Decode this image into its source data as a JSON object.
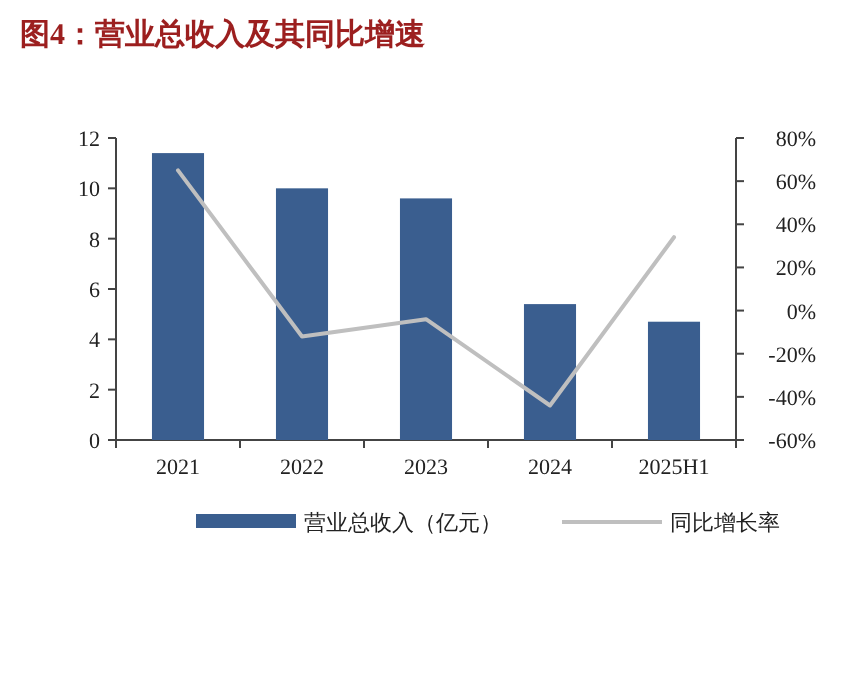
{
  "chart_data": {
    "type": "bar",
    "title": "图4：营业总收入及其同比增速",
    "categories": [
      "2021",
      "2022",
      "2023",
      "2024",
      "2025H1"
    ],
    "series": [
      {
        "name": "营业总收入（亿元）",
        "color": "#3a5e8f",
        "values": [
          11.4,
          10.0,
          9.6,
          5.4,
          4.7
        ]
      },
      {
        "name": "同比增长率",
        "type": "line",
        "axis": "y2",
        "color": "#bfbfbf",
        "values": [
          65,
          -12,
          -4,
          -44,
          34
        ]
      }
    ],
    "ylim": [
      0,
      12
    ],
    "yticks": [
      0,
      2,
      4,
      6,
      8,
      10,
      12
    ],
    "y2lim": [
      -60,
      80
    ],
    "y2ticks": [
      {
        "value": -60,
        "label": "-60%"
      },
      {
        "value": -40,
        "label": "-40%"
      },
      {
        "value": -20,
        "label": "-20%"
      },
      {
        "value": 0,
        "label": "0%"
      },
      {
        "value": 20,
        "label": "20%"
      },
      {
        "value": 40,
        "label": "40%"
      },
      {
        "value": 60,
        "label": "60%"
      },
      {
        "value": 80,
        "label": "80%"
      }
    ],
    "legend": "bottom",
    "marker": "none",
    "line_style": "solid"
  }
}
